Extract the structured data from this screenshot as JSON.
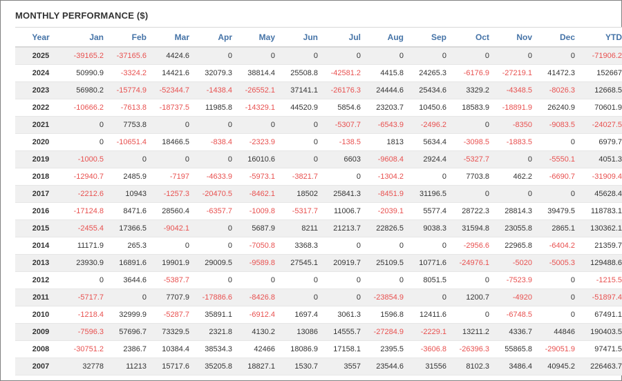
{
  "title": "MONTHLY PERFORMANCE ($)",
  "colors": {
    "header_text": "#4573a7",
    "negative": "#e8504f",
    "text": "#333333",
    "row_stripe": "#f0f0f0"
  },
  "chart_data": {
    "type": "table",
    "title": "MONTHLY PERFORMANCE ($)",
    "columns": [
      "Year",
      "Jan",
      "Feb",
      "Mar",
      "Apr",
      "May",
      "Jun",
      "Jul",
      "Aug",
      "Sep",
      "Oct",
      "Nov",
      "Dec",
      "YTD"
    ],
    "rows": [
      [
        "2025",
        "-39165.2",
        "-37165.6",
        "4424.6",
        "0",
        "0",
        "0",
        "0",
        "0",
        "0",
        "0",
        "0",
        "0",
        "-71906.2"
      ],
      [
        "2024",
        "50990.9",
        "-3324.2",
        "14421.6",
        "32079.3",
        "38814.4",
        "25508.8",
        "-42581.2",
        "4415.8",
        "24265.3",
        "-6176.9",
        "-27219.1",
        "41472.3",
        "152667"
      ],
      [
        "2023",
        "56980.2",
        "-15774.9",
        "-52344.7",
        "-1438.4",
        "-26552.1",
        "37141.1",
        "-26176.3",
        "24444.6",
        "25434.6",
        "3329.2",
        "-4348.5",
        "-8026.3",
        "12668.5"
      ],
      [
        "2022",
        "-10666.2",
        "-7613.8",
        "-18737.5",
        "11985.8",
        "-14329.1",
        "44520.9",
        "5854.6",
        "23203.7",
        "10450.6",
        "18583.9",
        "-18891.9",
        "26240.9",
        "70601.9"
      ],
      [
        "2021",
        "0",
        "7753.8",
        "0",
        "0",
        "0",
        "0",
        "-5307.7",
        "-6543.9",
        "-2496.2",
        "0",
        "-8350",
        "-9083.5",
        "-24027.5"
      ],
      [
        "2020",
        "0",
        "-10651.4",
        "18466.5",
        "-838.4",
        "-2323.9",
        "0",
        "-138.5",
        "1813",
        "5634.4",
        "-3098.5",
        "-1883.5",
        "0",
        "6979.7"
      ],
      [
        "2019",
        "-1000.5",
        "0",
        "0",
        "0",
        "16010.6",
        "0",
        "6603",
        "-9608.4",
        "2924.4",
        "-5327.7",
        "0",
        "-5550.1",
        "4051.3"
      ],
      [
        "2018",
        "-12940.7",
        "2485.9",
        "-7197",
        "-4633.9",
        "-5973.1",
        "-3821.7",
        "0",
        "-1304.2",
        "0",
        "7703.8",
        "462.2",
        "-6690.7",
        "-31909.4"
      ],
      [
        "2017",
        "-2212.6",
        "10943",
        "-1257.3",
        "-20470.5",
        "-8462.1",
        "18502",
        "25841.3",
        "-8451.9",
        "31196.5",
        "0",
        "0",
        "0",
        "45628.4"
      ],
      [
        "2016",
        "-17124.8",
        "8471.6",
        "28560.4",
        "-6357.7",
        "-1009.8",
        "-5317.7",
        "11006.7",
        "-2039.1",
        "5577.4",
        "28722.3",
        "28814.3",
        "39479.5",
        "118783.1"
      ],
      [
        "2015",
        "-2455.4",
        "17366.5",
        "-9042.1",
        "0",
        "5687.9",
        "8211",
        "21213.7",
        "22826.5",
        "9038.3",
        "31594.8",
        "23055.8",
        "2865.1",
        "130362.1"
      ],
      [
        "2014",
        "11171.9",
        "265.3",
        "0",
        "0",
        "-7050.8",
        "3368.3",
        "0",
        "0",
        "0",
        "-2956.6",
        "22965.8",
        "-6404.2",
        "21359.7"
      ],
      [
        "2013",
        "23930.9",
        "16891.6",
        "19901.9",
        "29009.5",
        "-9589.8",
        "27545.1",
        "20919.7",
        "25109.5",
        "10771.6",
        "-24976.1",
        "-5020",
        "-5005.3",
        "129488.6"
      ],
      [
        "2012",
        "0",
        "3644.6",
        "-5387.7",
        "0",
        "0",
        "0",
        "0",
        "0",
        "8051.5",
        "0",
        "-7523.9",
        "0",
        "-1215.5"
      ],
      [
        "2011",
        "-5717.7",
        "0",
        "7707.9",
        "-17886.6",
        "-8426.8",
        "0",
        "0",
        "-23854.9",
        "0",
        "1200.7",
        "-4920",
        "0",
        "-51897.4"
      ],
      [
        "2010",
        "-1218.4",
        "32999.9",
        "-5287.7",
        "35891.1",
        "-6912.4",
        "1697.4",
        "3061.3",
        "1596.8",
        "12411.6",
        "0",
        "-6748.5",
        "0",
        "67491.1"
      ],
      [
        "2009",
        "-7596.3",
        "57696.7",
        "73329.5",
        "2321.8",
        "4130.2",
        "13086",
        "14555.7",
        "-27284.9",
        "-2229.1",
        "13211.2",
        "4336.7",
        "44846",
        "190403.5"
      ],
      [
        "2008",
        "-30751.2",
        "2386.7",
        "10384.4",
        "38534.3",
        "42466",
        "18086.9",
        "17158.1",
        "2395.5",
        "-3606.8",
        "-26396.3",
        "55865.8",
        "-29051.9",
        "97471.5"
      ],
      [
        "2007",
        "32778",
        "11213",
        "15717.6",
        "35205.8",
        "18827.1",
        "1530.7",
        "3557",
        "23544.6",
        "31556",
        "8102.3",
        "3486.4",
        "40945.2",
        "226463.7"
      ]
    ]
  }
}
